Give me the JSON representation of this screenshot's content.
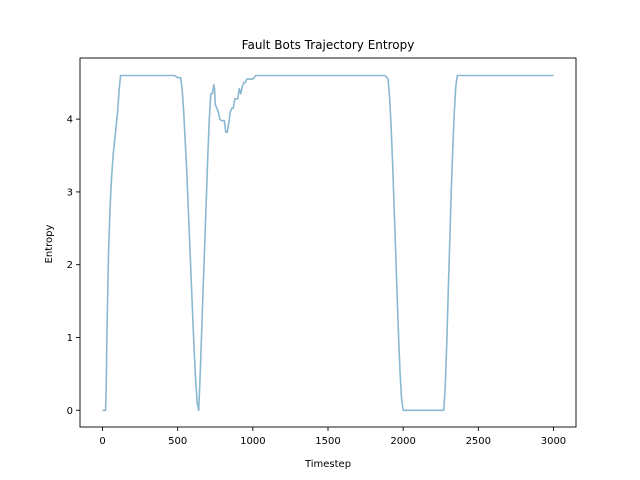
{
  "chart_data": {
    "type": "line",
    "title": "Fault Bots Trajectory Entropy",
    "xlabel": "Timestep",
    "ylabel": "Entropy",
    "xlim": [
      -150,
      3150
    ],
    "ylim": [
      -0.23,
      4.84
    ],
    "xticks": [
      0,
      500,
      1000,
      1500,
      2000,
      2500,
      3000
    ],
    "yticks": [
      0,
      1,
      2,
      3,
      4
    ],
    "grid": false,
    "legend": "none",
    "line_color": "#8bb8d1",
    "series": [
      {
        "name": "",
        "x": [
          0,
          20,
          25,
          30,
          40,
          50,
          60,
          70,
          80,
          90,
          100,
          110,
          120,
          200,
          300,
          400,
          480,
          500,
          520,
          530,
          540,
          550,
          560,
          570,
          580,
          590,
          600,
          610,
          620,
          630,
          640,
          650,
          660,
          670,
          680,
          690,
          700,
          710,
          720,
          730,
          740,
          745,
          750,
          760,
          770,
          780,
          790,
          800,
          810,
          820,
          830,
          840,
          850,
          860,
          870,
          880,
          890,
          900,
          910,
          920,
          930,
          940,
          950,
          960,
          970,
          980,
          990,
          1000,
          1020,
          1040,
          1050,
          1100,
          1200,
          1300,
          1400,
          1500,
          1600,
          1700,
          1800,
          1880,
          1900,
          1910,
          1920,
          1930,
          1940,
          1950,
          1960,
          1970,
          1980,
          1990,
          2000,
          2100,
          2200,
          2270,
          2280,
          2290,
          2300,
          2310,
          2320,
          2330,
          2340,
          2350,
          2360,
          2370,
          2500,
          2700,
          2900,
          3000
        ],
        "y": [
          0,
          0,
          0.4,
          1.2,
          2.2,
          2.8,
          3.2,
          3.5,
          3.7,
          3.9,
          4.1,
          4.4,
          4.6,
          4.6,
          4.6,
          4.6,
          4.6,
          4.57,
          4.57,
          4.4,
          4.1,
          3.7,
          3.3,
          2.8,
          2.3,
          1.8,
          1.3,
          0.8,
          0.4,
          0.1,
          0,
          0.5,
          1.1,
          1.7,
          2.3,
          2.9,
          3.5,
          4.0,
          4.35,
          4.35,
          4.47,
          4.42,
          4.2,
          4.15,
          4.1,
          4.0,
          3.98,
          3.98,
          3.98,
          3.82,
          3.82,
          3.95,
          4.1,
          4.15,
          4.15,
          4.28,
          4.28,
          4.28,
          4.42,
          4.35,
          4.45,
          4.5,
          4.5,
          4.55,
          4.55,
          4.55,
          4.55,
          4.55,
          4.6,
          4.6,
          4.6,
          4.6,
          4.6,
          4.6,
          4.6,
          4.6,
          4.6,
          4.6,
          4.6,
          4.6,
          4.55,
          4.3,
          3.9,
          3.4,
          2.8,
          2.2,
          1.6,
          1.0,
          0.5,
          0.15,
          0,
          0,
          0,
          0,
          0.3,
          0.9,
          1.6,
          2.3,
          3.0,
          3.6,
          4.1,
          4.45,
          4.6,
          4.6,
          4.6,
          4.6,
          4.6,
          4.6
        ]
      }
    ]
  }
}
